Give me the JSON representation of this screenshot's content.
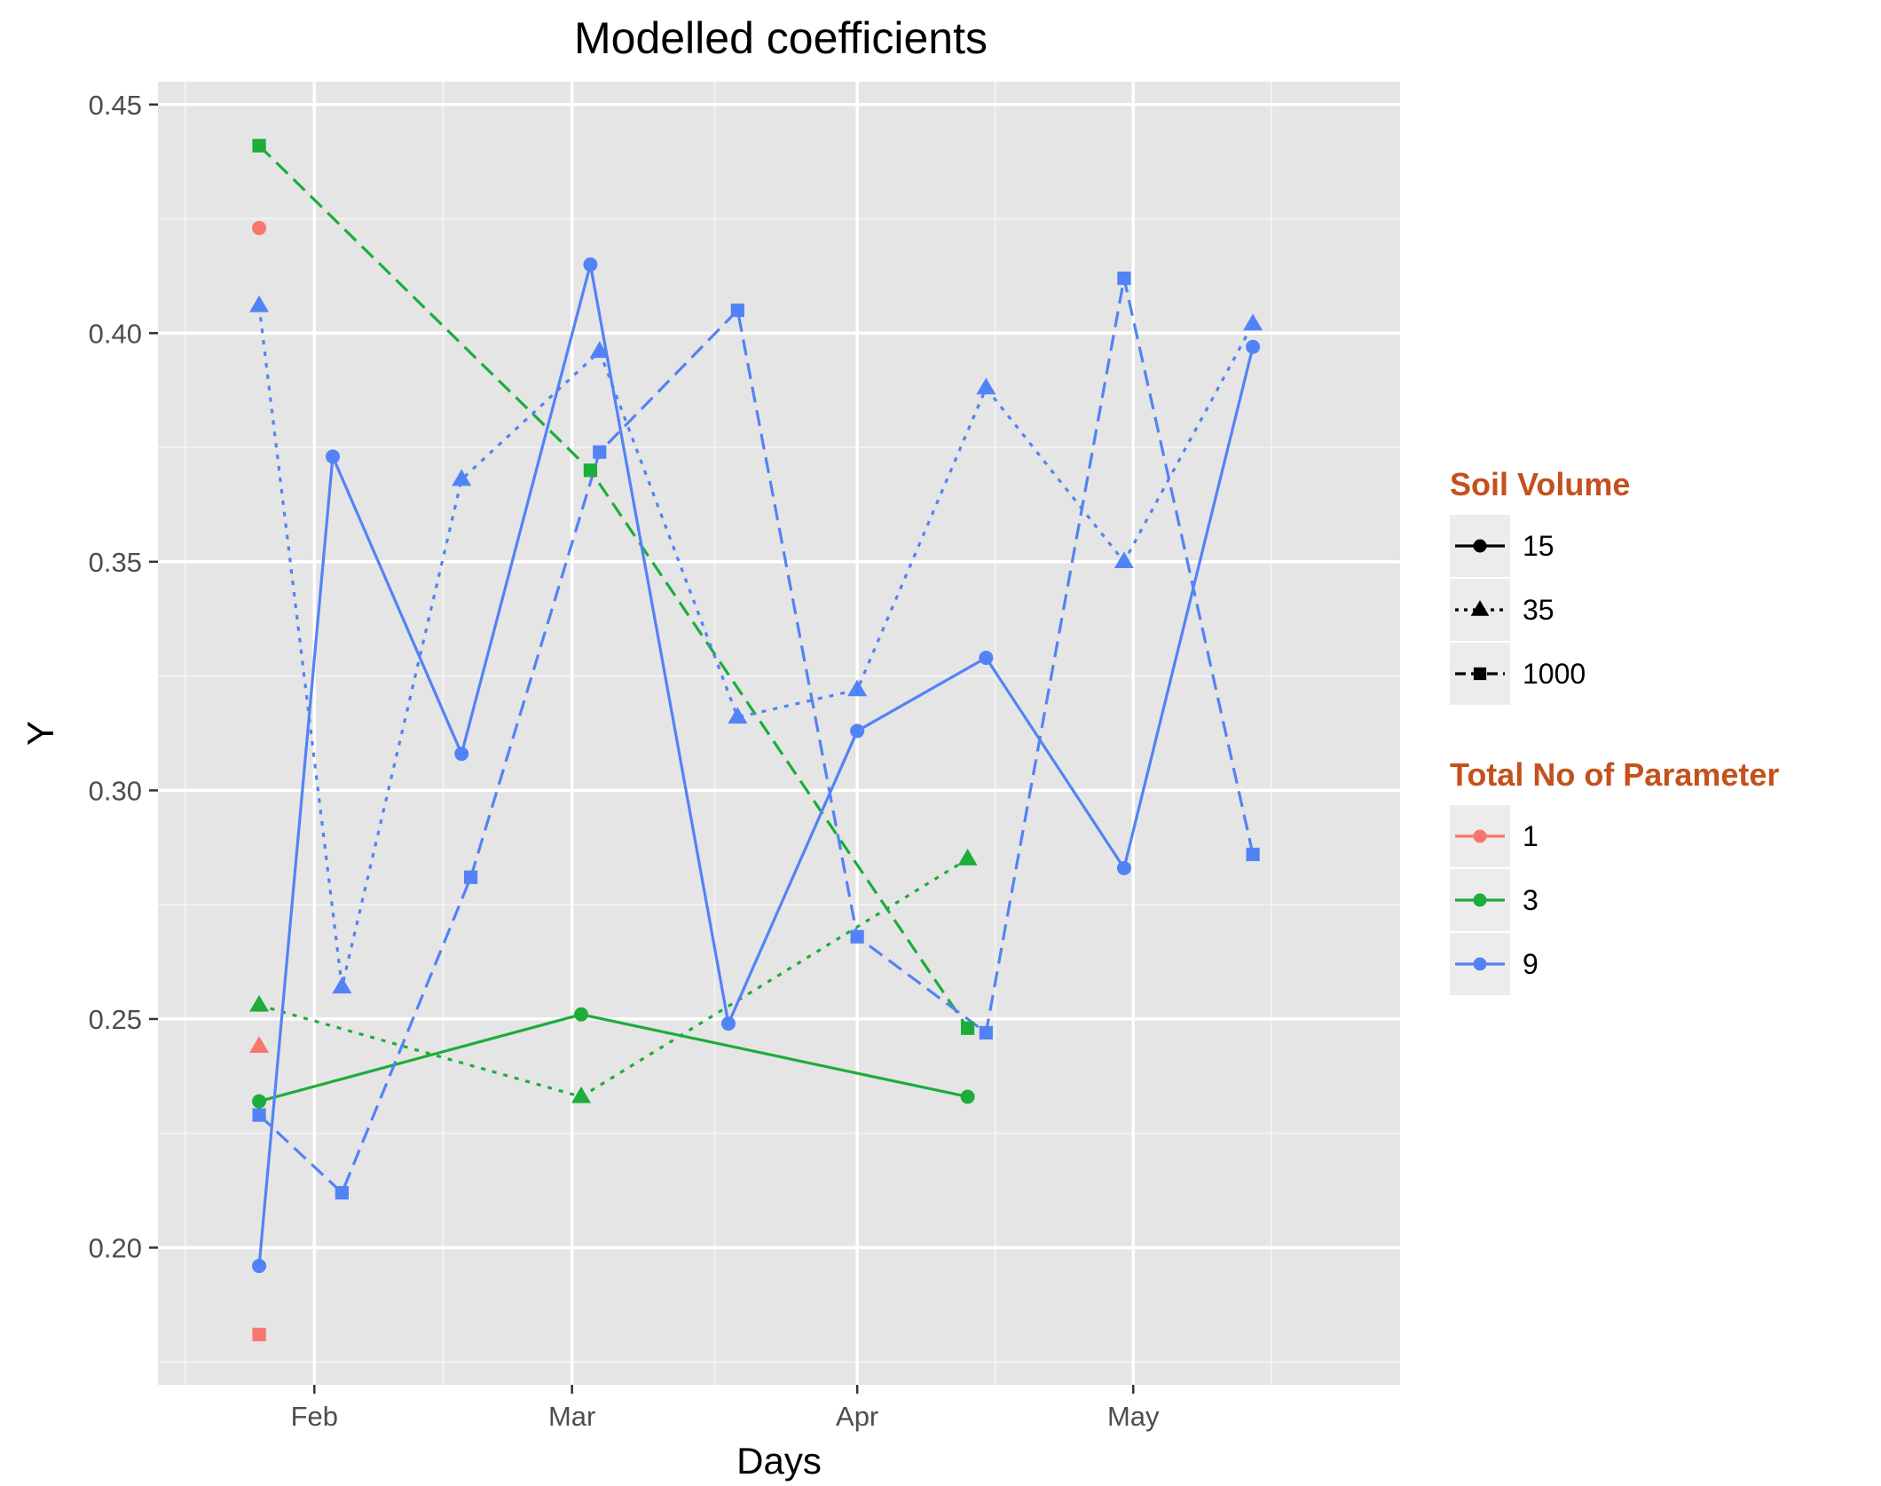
{
  "chart_data": {
    "type": "line",
    "title": "Modelled coefficients",
    "xlabel": "Days",
    "ylabel": "Y",
    "xlim": [
      "2017-01-15",
      "2017-05-30"
    ],
    "ylim": [
      0.17,
      0.455
    ],
    "x_ticks": [
      {
        "label": "Feb",
        "date": "2017-02-01"
      },
      {
        "label": "Mar",
        "date": "2017-03-01"
      },
      {
        "label": "Apr",
        "date": "2017-04-01"
      },
      {
        "label": "May",
        "date": "2017-05-01"
      }
    ],
    "y_ticks": [
      {
        "label": "0.20",
        "value": 0.2
      },
      {
        "label": "0.25",
        "value": 0.25
      },
      {
        "label": "0.30",
        "value": 0.3
      },
      {
        "label": "0.35",
        "value": 0.35
      },
      {
        "label": "0.40",
        "value": 0.4
      },
      {
        "label": "0.45",
        "value": 0.45
      }
    ],
    "grid": true,
    "legend_position": "right",
    "legends": [
      {
        "title": "Soil Volume",
        "title_color": "#c4511d",
        "items": [
          {
            "label": "15",
            "shape": "circle",
            "linetype": "solid"
          },
          {
            "label": "35",
            "shape": "triangle",
            "linetype": "dotted"
          },
          {
            "label": "1000",
            "shape": "square",
            "linetype": "dashed"
          }
        ]
      },
      {
        "title": "Total No of Parameter",
        "title_color": "#c4511d",
        "items": [
          {
            "label": "1",
            "color": "#f8766d"
          },
          {
            "label": "3",
            "color": "#1cad3a"
          },
          {
            "label": "9",
            "color": "#5283f6"
          }
        ]
      }
    ],
    "series": [
      {
        "params": "1",
        "soil": "15",
        "color": "#f8766d",
        "shape": "circle",
        "linetype": "solid",
        "points": [
          {
            "x": "2017-01-26",
            "y": 0.423
          }
        ]
      },
      {
        "params": "1",
        "soil": "35",
        "color": "#f8766d",
        "shape": "triangle",
        "linetype": "dotted",
        "points": [
          {
            "x": "2017-01-26",
            "y": 0.244
          }
        ]
      },
      {
        "params": "1",
        "soil": "1000",
        "color": "#f8766d",
        "shape": "square",
        "linetype": "dashed",
        "points": [
          {
            "x": "2017-01-26",
            "y": 0.181
          }
        ]
      },
      {
        "params": "3",
        "soil": "15",
        "color": "#1cad3a",
        "shape": "circle",
        "linetype": "solid",
        "points": [
          {
            "x": "2017-01-26",
            "y": 0.232
          },
          {
            "x": "2017-03-02",
            "y": 0.251
          },
          {
            "x": "2017-04-13",
            "y": 0.233
          }
        ]
      },
      {
        "params": "3",
        "soil": "35",
        "color": "#1cad3a",
        "shape": "triangle",
        "linetype": "dotted",
        "points": [
          {
            "x": "2017-01-26",
            "y": 0.253
          },
          {
            "x": "2017-03-02",
            "y": 0.233
          },
          {
            "x": "2017-04-13",
            "y": 0.285
          }
        ]
      },
      {
        "params": "3",
        "soil": "1000",
        "color": "#1cad3a",
        "shape": "square",
        "linetype": "dashed",
        "points": [
          {
            "x": "2017-01-26",
            "y": 0.441
          },
          {
            "x": "2017-03-03",
            "y": 0.37
          },
          {
            "x": "2017-04-13",
            "y": 0.248
          }
        ]
      },
      {
        "params": "9",
        "soil": "15",
        "color": "#5283f6",
        "shape": "circle",
        "linetype": "solid",
        "points": [
          {
            "x": "2017-01-26",
            "y": 0.196
          },
          {
            "x": "2017-02-03",
            "y": 0.373
          },
          {
            "x": "2017-02-17",
            "y": 0.308
          },
          {
            "x": "2017-03-03",
            "y": 0.415
          },
          {
            "x": "2017-03-18",
            "y": 0.249
          },
          {
            "x": "2017-04-01",
            "y": 0.313
          },
          {
            "x": "2017-04-15",
            "y": 0.329
          },
          {
            "x": "2017-04-30",
            "y": 0.283
          },
          {
            "x": "2017-05-14",
            "y": 0.397
          }
        ]
      },
      {
        "params": "9",
        "soil": "35",
        "color": "#5283f6",
        "shape": "triangle",
        "linetype": "dotted",
        "points": [
          {
            "x": "2017-01-26",
            "y": 0.406
          },
          {
            "x": "2017-02-04",
            "y": 0.257
          },
          {
            "x": "2017-02-17",
            "y": 0.368
          },
          {
            "x": "2017-03-04",
            "y": 0.396
          },
          {
            "x": "2017-03-19",
            "y": 0.316
          },
          {
            "x": "2017-04-01",
            "y": 0.322
          },
          {
            "x": "2017-04-15",
            "y": 0.388
          },
          {
            "x": "2017-04-30",
            "y": 0.35
          },
          {
            "x": "2017-05-14",
            "y": 0.402
          }
        ]
      },
      {
        "params": "9",
        "soil": "1000",
        "color": "#5283f6",
        "shape": "square",
        "linetype": "dashed",
        "points": [
          {
            "x": "2017-01-26",
            "y": 0.229
          },
          {
            "x": "2017-02-04",
            "y": 0.212
          },
          {
            "x": "2017-02-18",
            "y": 0.281
          },
          {
            "x": "2017-03-04",
            "y": 0.374
          },
          {
            "x": "2017-03-19",
            "y": 0.405
          },
          {
            "x": "2017-04-01",
            "y": 0.268
          },
          {
            "x": "2017-04-15",
            "y": 0.247
          },
          {
            "x": "2017-04-30",
            "y": 0.412
          },
          {
            "x": "2017-05-14",
            "y": 0.286
          }
        ]
      }
    ]
  }
}
